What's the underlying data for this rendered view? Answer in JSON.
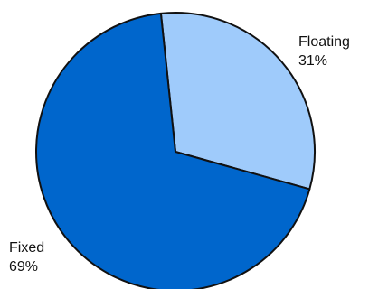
{
  "chart_data": {
    "type": "pie",
    "slices": [
      {
        "name": "Floating",
        "value": 31,
        "value_label": "31%",
        "color": "#9fcbfb"
      },
      {
        "name": "Fixed",
        "value": 69,
        "value_label": "69%",
        "color": "#0066cc"
      }
    ],
    "outline_color": "#111111",
    "legend": "none"
  }
}
